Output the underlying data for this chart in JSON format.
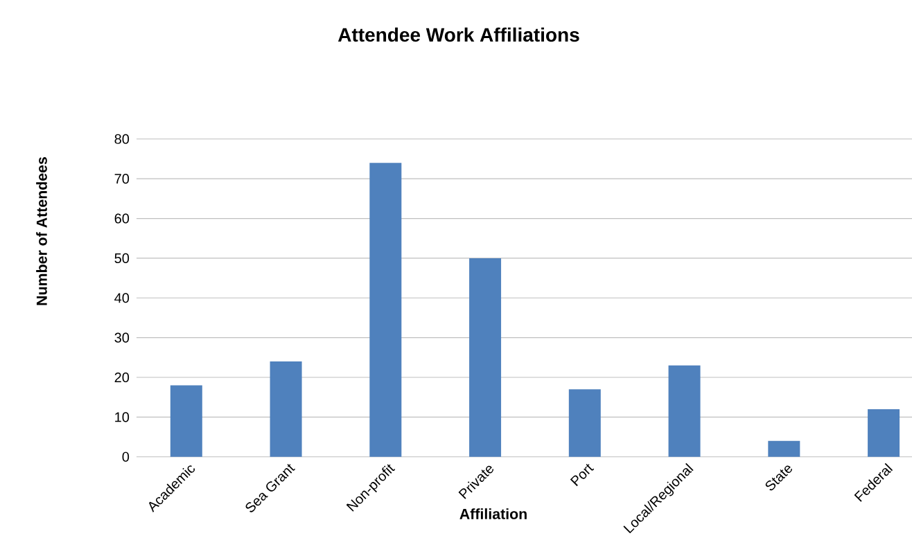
{
  "chart_data": {
    "type": "bar",
    "title": "Attendee Work Affiliations",
    "xlabel": "Affiliation",
    "ylabel": "Number of Attendees",
    "categories": [
      "Academic",
      "Sea Grant",
      "Non-profit",
      "Private",
      "Port",
      "Local/Regional",
      "State",
      "Federal"
    ],
    "values": [
      18,
      24,
      74,
      50,
      17,
      23,
      4,
      12
    ],
    "color": "#4f81bd",
    "ylim": [
      0,
      80
    ],
    "yticks": [
      0,
      10,
      20,
      30,
      40,
      50,
      60,
      70,
      80
    ],
    "grid": "y"
  }
}
